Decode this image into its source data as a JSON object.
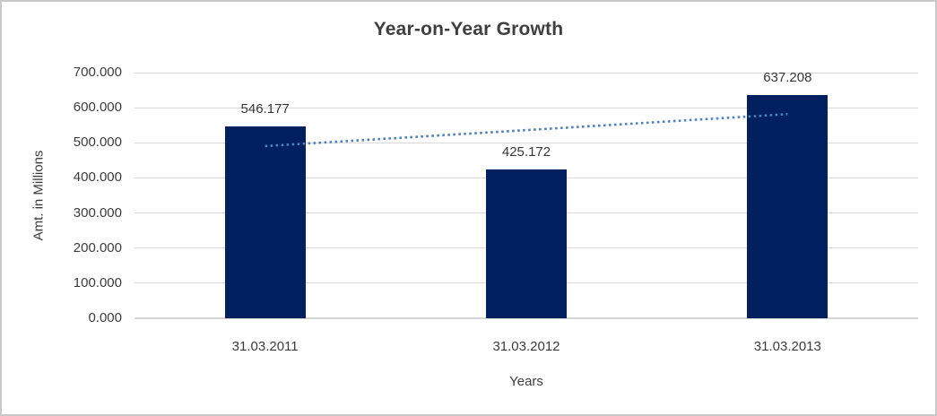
{
  "chart_data": {
    "type": "bar",
    "title": "Year-on-Year Growth",
    "categories": [
      "31.03.2011",
      "31.03.2012",
      "31.03.2013"
    ],
    "values": [
      546.177,
      425.172,
      637.208
    ],
    "data_labels": [
      "546.177",
      "425.172",
      "637.208"
    ],
    "xlabel": "Years",
    "ylabel": "Amt. in Millions",
    "ylim": [
      0,
      700
    ],
    "ytick_step": 100,
    "ytick_labels": [
      "0.000",
      "100.000",
      "200.000",
      "300.000",
      "400.000",
      "500.000",
      "600.000",
      "700.000"
    ],
    "grid": true,
    "legend": "none",
    "bar_color": "#002060",
    "trendline": {
      "kind": "linear",
      "style": "dotted",
      "color": "#4e81bd"
    }
  }
}
